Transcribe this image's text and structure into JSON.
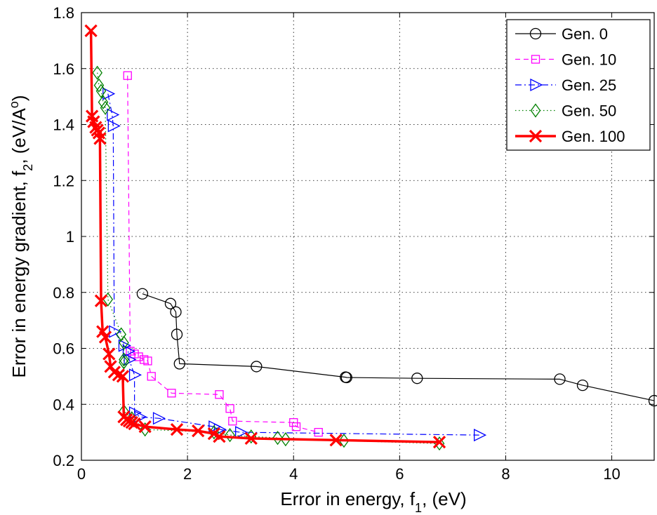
{
  "chart_data": {
    "type": "line",
    "xlabel": "Error in energy, f",
    "xlabel_sub": "1",
    "xlabel_tail": ", (eV)",
    "ylabel": "Error in energy gradient, f",
    "ylabel_sub": "2",
    "ylabel_tail": ", (eV/A",
    "ylabel_sup": "o",
    "ylabel_end": ")",
    "xlim": [
      0,
      10.8
    ],
    "ylim": [
      0.2,
      1.8
    ],
    "xticks": [
      0,
      2,
      4,
      6,
      8,
      10
    ],
    "yticks": [
      0.2,
      0.4,
      0.6,
      0.8,
      1.0,
      1.2,
      1.4,
      1.6,
      1.8
    ],
    "xtick_labels": [
      "0",
      "2",
      "4",
      "6",
      "8",
      "10"
    ],
    "ytick_labels": [
      "0.2",
      "0.4",
      "0.6",
      "0.8",
      "1",
      "1.2",
      "1.4",
      "1.6",
      "1.8"
    ],
    "grid": true,
    "legend_position": "top-right",
    "series": [
      {
        "name": "Gen. 0",
        "color": "#000000",
        "marker": "circle",
        "line_style": "solid",
        "line_width": 1.2,
        "points": [
          [
            1.15,
            0.795
          ],
          [
            1.68,
            0.76
          ],
          [
            1.78,
            0.73
          ],
          [
            1.8,
            0.65
          ],
          [
            1.85,
            0.545
          ],
          [
            3.3,
            0.535
          ],
          [
            4.98,
            0.497
          ],
          [
            5.0,
            0.496
          ],
          [
            6.33,
            0.493
          ],
          [
            9.02,
            0.49
          ],
          [
            9.45,
            0.468
          ],
          [
            10.8,
            0.413
          ]
        ]
      },
      {
        "name": "Gen. 10",
        "color": "#ff00ff",
        "marker": "square",
        "line_style": "dashed",
        "line_width": 1.2,
        "points": [
          [
            0.87,
            1.575
          ],
          [
            0.92,
            0.59
          ],
          [
            1.0,
            0.58
          ],
          [
            1.08,
            0.57
          ],
          [
            1.18,
            0.56
          ],
          [
            1.25,
            0.555
          ],
          [
            1.32,
            0.5
          ],
          [
            1.7,
            0.44
          ],
          [
            2.6,
            0.435
          ],
          [
            2.8,
            0.385
          ],
          [
            2.85,
            0.34
          ],
          [
            4.0,
            0.335
          ],
          [
            4.05,
            0.32
          ],
          [
            4.47,
            0.3
          ]
        ]
      },
      {
        "name": "Gen. 25",
        "color": "#0000ff",
        "marker": "triangle-right",
        "line_style": "dashdot",
        "line_width": 1.2,
        "points": [
          [
            0.5,
            1.51
          ],
          [
            0.58,
            1.435
          ],
          [
            0.6,
            1.395
          ],
          [
            0.62,
            0.66
          ],
          [
            0.8,
            0.61
          ],
          [
            0.88,
            0.59
          ],
          [
            0.9,
            0.56
          ],
          [
            1.0,
            0.505
          ],
          [
            1.0,
            0.37
          ],
          [
            1.1,
            0.355
          ],
          [
            1.45,
            0.35
          ],
          [
            2.5,
            0.32
          ],
          [
            2.6,
            0.31
          ],
          [
            3.0,
            0.3
          ],
          [
            7.5,
            0.29
          ]
        ]
      },
      {
        "name": "Gen. 50",
        "color": "#008000",
        "marker": "diamond",
        "line_style": "dotted",
        "line_width": 1.2,
        "points": [
          [
            0.3,
            1.585
          ],
          [
            0.33,
            1.54
          ],
          [
            0.37,
            1.52
          ],
          [
            0.41,
            1.48
          ],
          [
            0.45,
            1.46
          ],
          [
            0.5,
            0.775
          ],
          [
            0.75,
            0.65
          ],
          [
            0.8,
            0.62
          ],
          [
            0.8,
            0.56
          ],
          [
            0.8,
            0.55
          ],
          [
            0.8,
            0.375
          ],
          [
            0.95,
            0.35
          ],
          [
            1.2,
            0.31
          ],
          [
            2.5,
            0.3
          ],
          [
            2.8,
            0.29
          ],
          [
            3.2,
            0.285
          ],
          [
            3.7,
            0.28
          ],
          [
            3.85,
            0.275
          ],
          [
            4.95,
            0.27
          ],
          [
            6.75,
            0.26
          ]
        ]
      },
      {
        "name": "Gen. 100",
        "color": "#ff0000",
        "marker": "x",
        "line_style": "solid",
        "line_width": 3.5,
        "points": [
          [
            0.18,
            1.735
          ],
          [
            0.2,
            1.43
          ],
          [
            0.23,
            1.41
          ],
          [
            0.27,
            1.39
          ],
          [
            0.3,
            1.38
          ],
          [
            0.33,
            1.37
          ],
          [
            0.35,
            1.35
          ],
          [
            0.37,
            0.77
          ],
          [
            0.4,
            0.66
          ],
          [
            0.45,
            0.64
          ],
          [
            0.52,
            0.58
          ],
          [
            0.55,
            0.535
          ],
          [
            0.62,
            0.515
          ],
          [
            0.7,
            0.505
          ],
          [
            0.78,
            0.5
          ],
          [
            0.8,
            0.355
          ],
          [
            0.85,
            0.345
          ],
          [
            0.9,
            0.34
          ],
          [
            0.95,
            0.335
          ],
          [
            1.0,
            0.33
          ],
          [
            1.2,
            0.32
          ],
          [
            1.8,
            0.31
          ],
          [
            2.2,
            0.305
          ],
          [
            2.5,
            0.295
          ],
          [
            2.6,
            0.285
          ],
          [
            3.2,
            0.278
          ],
          [
            4.8,
            0.272
          ],
          [
            6.75,
            0.265
          ]
        ]
      }
    ]
  }
}
